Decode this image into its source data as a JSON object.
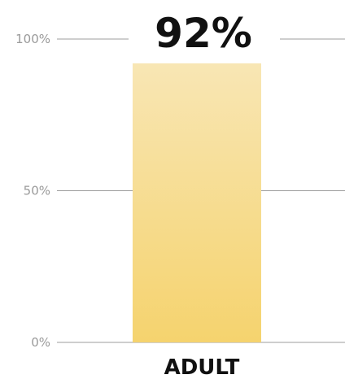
{
  "chart_data": {
    "type": "bar",
    "categories": [
      "ADULT"
    ],
    "values": [
      92
    ],
    "value_labels": [
      "92%"
    ],
    "title": "",
    "xlabel": "",
    "ylabel": "",
    "ylim": [
      0,
      100
    ],
    "y_ticks": [
      0,
      50,
      100
    ],
    "y_tick_labels": [
      "0%",
      "50%",
      "100%"
    ],
    "grid": true,
    "legend": "none",
    "colors": {
      "bar_top": "#f8e6b4",
      "bar_bottom": "#f5d36e",
      "grid": "#9c9c9c",
      "tick_text": "#9a9a9a",
      "label_text": "#111111"
    }
  }
}
